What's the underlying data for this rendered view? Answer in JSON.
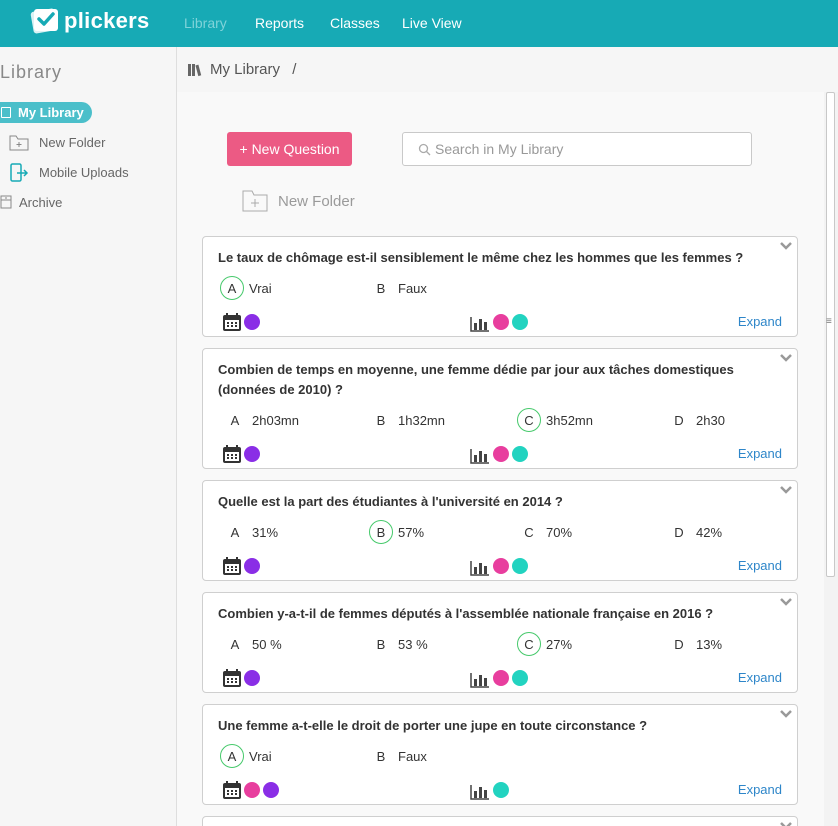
{
  "app": {
    "name": "plickers"
  },
  "nav": [
    "Library",
    "Reports",
    "Classes",
    "Live View"
  ],
  "sidebar": {
    "title": "Library",
    "items": [
      "My Library",
      "New Folder",
      "Mobile Uploads",
      "Archive"
    ]
  },
  "breadcrumb": {
    "location": "My Library",
    "separator": "/"
  },
  "toolbar": {
    "new_question": "+ New Question",
    "search_placeholder": "Search in My Library",
    "new_folder": "New Folder"
  },
  "colors": {
    "teal": "#17aab5",
    "pink": "#e83e9e",
    "purple": "#8a2ee6",
    "cyan": "#22d3c0",
    "correct": "#46c96b",
    "link": "#2e86c9"
  },
  "expand_label": "Expand",
  "questions": [
    {
      "text": "Le taux de chômage est-il sensiblement le même chez les hommes que les femmes ?",
      "choices": [
        {
          "letter": "A",
          "text": "Vrai",
          "correct": true
        },
        {
          "letter": "B",
          "text": "Faux",
          "correct": false
        }
      ],
      "tags": [
        "purple"
      ],
      "report_dots": [
        "pink",
        "cyan"
      ]
    },
    {
      "text": "Combien de temps en moyenne, une femme dédie par jour aux tâches domestiques (données de 2010) ?",
      "choices": [
        {
          "letter": "A",
          "text": "2h03mn",
          "correct": false
        },
        {
          "letter": "B",
          "text": "1h32mn",
          "correct": false
        },
        {
          "letter": "C",
          "text": "3h52mn",
          "correct": true
        },
        {
          "letter": "D",
          "text": "2h30",
          "correct": false
        }
      ],
      "tags": [
        "purple"
      ],
      "report_dots": [
        "pink",
        "cyan"
      ]
    },
    {
      "text": "Quelle est la part des étudiantes à l'université en 2014 ?",
      "choices": [
        {
          "letter": "A",
          "text": "31%",
          "correct": false
        },
        {
          "letter": "B",
          "text": "57%",
          "correct": true
        },
        {
          "letter": "C",
          "text": "70%",
          "correct": false
        },
        {
          "letter": "D",
          "text": "42%",
          "correct": false
        }
      ],
      "tags": [
        "purple"
      ],
      "report_dots": [
        "pink",
        "cyan"
      ]
    },
    {
      "text": "Combien y-a-t-il de femmes députés à l'assemblée nationale française en 2016 ?",
      "choices": [
        {
          "letter": "A",
          "text": "50 %",
          "correct": false
        },
        {
          "letter": "B",
          "text": "53 %",
          "correct": false
        },
        {
          "letter": "C",
          "text": "27%",
          "correct": true
        },
        {
          "letter": "D",
          "text": "13%",
          "correct": false
        }
      ],
      "tags": [
        "purple"
      ],
      "report_dots": [
        "pink",
        "cyan"
      ]
    },
    {
      "text": "Une femme a-t-elle le droit de porter une jupe en toute circonstance ?",
      "choices": [
        {
          "letter": "A",
          "text": "Vrai",
          "correct": true
        },
        {
          "letter": "B",
          "text": "Faux",
          "correct": false
        }
      ],
      "tags": [
        "pink",
        "purple"
      ],
      "report_dots": [
        "cyan"
      ]
    }
  ]
}
